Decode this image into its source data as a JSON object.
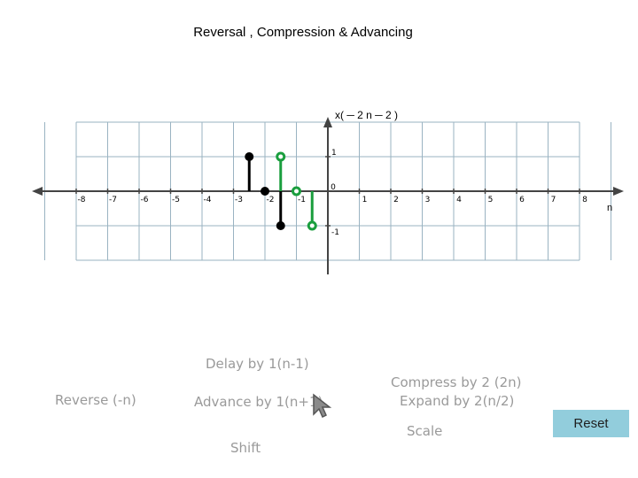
{
  "title": "Reversal , Compression & Advancing",
  "chart_data": {
    "type": "stem",
    "signal_label": "x( ─ 2 n ─ 2 )",
    "xlabel": "n",
    "x_ticks": [
      "-8",
      "-7",
      "-6",
      "-5",
      "-4",
      "-3",
      "-2",
      "-1",
      "0",
      "1",
      "2",
      "3",
      "4",
      "5",
      "6",
      "7",
      "8"
    ],
    "y_ticks": [
      "1",
      "-1"
    ],
    "xlim": [
      -9,
      9
    ],
    "ylim": [
      -1,
      1
    ],
    "grid": true,
    "series": [
      {
        "color": "#000000",
        "points": [
          {
            "x": -2.5,
            "y": 1
          },
          {
            "x": -2,
            "y": 0
          },
          {
            "x": -1.5,
            "y": -1
          }
        ]
      },
      {
        "color": "#1a9e3e",
        "points": [
          {
            "x": -1.5,
            "y": 1
          },
          {
            "x": -1,
            "y": 0
          },
          {
            "x": -0.5,
            "y": -1
          }
        ]
      }
    ]
  },
  "controls": {
    "delay": "Delay by 1(n-1)",
    "reverse": "Reverse (-n)",
    "advance": "Advance by 1(n+1)",
    "compress": "Compress by 2 (2n)",
    "expand": "Expand by 2(n/2)",
    "scale": "Scale",
    "shift": "Shift",
    "reset": "Reset"
  }
}
